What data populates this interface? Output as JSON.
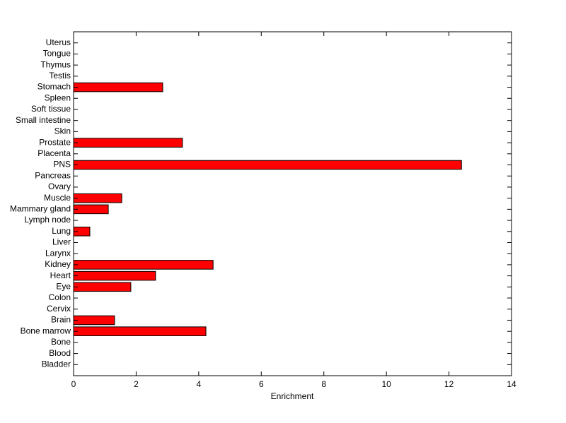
{
  "chart_data": {
    "type": "barh",
    "xlabel": "Enrichment",
    "categories": [
      "Bladder",
      "Blood",
      "Bone",
      "Bone marrow",
      "Brain",
      "Cervix",
      "Colon",
      "Eye",
      "Heart",
      "Kidney",
      "Larynx",
      "Liver",
      "Lung",
      "Lymph node",
      "Mammary gland",
      "Muscle",
      "Ovary",
      "Pancreas",
      "PNS",
      "Placenta",
      "Prostate",
      "Skin",
      "Small intestine",
      "Soft tissue",
      "Spleen",
      "Stomach",
      "Testis",
      "Thymus",
      "Tongue",
      "Uterus"
    ],
    "values": [
      0,
      0,
      0,
      4.23,
      1.31,
      0,
      0,
      1.83,
      2.62,
      4.46,
      0,
      0,
      0.52,
      0,
      1.11,
      1.54,
      0,
      0,
      12.4,
      0,
      3.48,
      0,
      0,
      0,
      0,
      2.85,
      0,
      0,
      0,
      0
    ],
    "color": "#ff0000",
    "xlim": [
      0,
      14
    ],
    "xticks": [
      0,
      2,
      4,
      6,
      8,
      10,
      12,
      14
    ]
  }
}
